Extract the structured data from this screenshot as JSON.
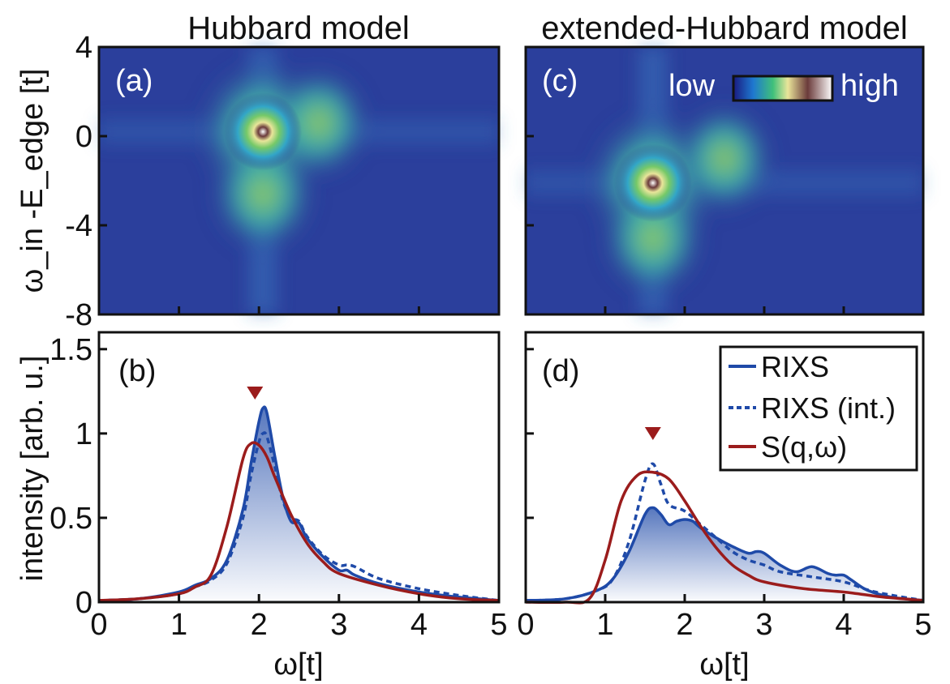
{
  "chart_data": [
    {
      "id": "a",
      "type": "heatmap",
      "panel_label": "(a)",
      "title": "Hubbard model",
      "xlim": [
        0,
        5
      ],
      "ylim": [
        -8,
        4
      ],
      "ylabel": "ω_in -E_edge [t]",
      "yticks": [
        "4",
        "0",
        "-4",
        "-8"
      ],
      "ytick_values": [
        4,
        0,
        -4,
        -8
      ],
      "peaks": [
        {
          "x": 2.05,
          "y": 0.2,
          "intensity": 1.0
        },
        {
          "x": 2.05,
          "y": -2.6,
          "intensity": 0.55
        },
        {
          "x": 2.75,
          "y": 0.6,
          "intensity": 0.45
        }
      ]
    },
    {
      "id": "c",
      "type": "heatmap",
      "panel_label": "(c)",
      "title": "extended-Hubbard model",
      "xlim": [
        0,
        5
      ],
      "ylim": [
        -8,
        4
      ],
      "colorbar": {
        "low": "low",
        "high": "high"
      },
      "peaks": [
        {
          "x": 1.6,
          "y": -2.1,
          "intensity": 1.0
        },
        {
          "x": 1.6,
          "y": -4.6,
          "intensity": 0.5
        },
        {
          "x": 2.5,
          "y": -1.0,
          "intensity": 0.4
        }
      ]
    },
    {
      "id": "b",
      "type": "line",
      "panel_label": "(b)",
      "xlabel": "ω[t]",
      "ylabel": "intensity [arb. u.]",
      "xlim": [
        0,
        5
      ],
      "ylim": [
        0,
        1.6
      ],
      "xticks": [
        "0",
        "1",
        "2",
        "3",
        "4",
        "5"
      ],
      "yticks": [
        "0",
        "0.5",
        "1",
        "1.5"
      ],
      "ytick_values": [
        0,
        0.5,
        1,
        1.5
      ],
      "marker": {
        "x": 1.95,
        "y": 1.23
      },
      "series": [
        {
          "name": "RIXS",
          "style": "solid",
          "color": "#1f4aa8",
          "x": [
            0,
            0.5,
            1.0,
            1.2,
            1.4,
            1.6,
            1.8,
            1.9,
            2.0,
            2.05,
            2.1,
            2.2,
            2.3,
            2.4,
            2.5,
            2.6,
            2.8,
            3.0,
            3.1,
            3.2,
            3.5,
            4.0,
            4.5,
            5.0
          ],
          "y": [
            0.01,
            0.02,
            0.06,
            0.1,
            0.14,
            0.25,
            0.55,
            0.82,
            1.07,
            1.15,
            1.12,
            0.86,
            0.62,
            0.48,
            0.47,
            0.38,
            0.27,
            0.19,
            0.19,
            0.16,
            0.11,
            0.06,
            0.03,
            0.01
          ]
        },
        {
          "name": "RIXS (int.)",
          "style": "dashed",
          "color": "#1f4aa8",
          "x": [
            0,
            0.5,
            1.0,
            1.2,
            1.4,
            1.6,
            1.8,
            1.9,
            2.0,
            2.05,
            2.1,
            2.2,
            2.3,
            2.4,
            2.5,
            2.6,
            2.8,
            3.0,
            3.1,
            3.2,
            3.5,
            4.0,
            4.5,
            5.0
          ],
          "y": [
            0.01,
            0.02,
            0.05,
            0.09,
            0.13,
            0.23,
            0.5,
            0.75,
            0.95,
            1.0,
            0.98,
            0.8,
            0.6,
            0.5,
            0.48,
            0.39,
            0.28,
            0.22,
            0.22,
            0.21,
            0.14,
            0.08,
            0.04,
            0.01
          ]
        },
        {
          "name": "S(q,ω)",
          "style": "solid",
          "color": "#9b1c1c",
          "x": [
            0,
            0.5,
            1.0,
            1.2,
            1.4,
            1.6,
            1.8,
            1.9,
            2.0,
            2.1,
            2.2,
            2.4,
            2.6,
            2.8,
            3.0,
            3.5,
            4.0,
            4.5,
            5.0
          ],
          "y": [
            0.01,
            0.02,
            0.05,
            0.09,
            0.16,
            0.45,
            0.85,
            0.94,
            0.93,
            0.86,
            0.74,
            0.52,
            0.35,
            0.24,
            0.17,
            0.1,
            0.05,
            0.02,
            0.01
          ]
        }
      ]
    },
    {
      "id": "d",
      "type": "line",
      "panel_label": "(d)",
      "xlabel": "ω[t]",
      "xlim": [
        0,
        5
      ],
      "ylim": [
        0,
        1.6
      ],
      "xticks": [
        "0",
        "1",
        "2",
        "3",
        "4",
        "5"
      ],
      "marker": {
        "x": 1.6,
        "y": 0.99
      },
      "legend": [
        "RIXS",
        "RIXS (int.)",
        "S(q,ω)"
      ],
      "series": [
        {
          "name": "RIXS",
          "style": "solid",
          "color": "#1f4aa8",
          "x": [
            0,
            0.5,
            0.9,
            1.1,
            1.3,
            1.5,
            1.6,
            1.7,
            1.8,
            1.9,
            2.0,
            2.1,
            2.2,
            2.4,
            2.6,
            2.8,
            2.9,
            3.0,
            3.2,
            3.4,
            3.6,
            3.8,
            3.9,
            4.0,
            4.1,
            4.3,
            4.6,
            5.0
          ],
          "y": [
            0.01,
            0.02,
            0.07,
            0.14,
            0.3,
            0.52,
            0.56,
            0.52,
            0.46,
            0.48,
            0.49,
            0.48,
            0.44,
            0.38,
            0.33,
            0.29,
            0.3,
            0.29,
            0.22,
            0.18,
            0.21,
            0.17,
            0.16,
            0.16,
            0.13,
            0.07,
            0.03,
            0.01
          ]
        },
        {
          "name": "RIXS (int.)",
          "style": "dashed",
          "color": "#1f4aa8",
          "x": [
            0,
            0.5,
            0.9,
            1.1,
            1.3,
            1.5,
            1.6,
            1.7,
            1.8,
            2.0,
            2.2,
            2.4,
            2.6,
            2.8,
            3.0,
            3.2,
            3.6,
            4.0,
            4.4,
            5.0
          ],
          "y": [
            0.01,
            0.02,
            0.07,
            0.14,
            0.36,
            0.72,
            0.82,
            0.7,
            0.58,
            0.54,
            0.46,
            0.38,
            0.3,
            0.25,
            0.22,
            0.18,
            0.15,
            0.12,
            0.06,
            0.01
          ]
        },
        {
          "name": "S(q,ω)",
          "style": "solid",
          "color": "#9b1c1c",
          "x": [
            0,
            0.5,
            0.8,
            1.0,
            1.2,
            1.4,
            1.6,
            1.8,
            2.0,
            2.2,
            2.4,
            2.6,
            2.8,
            3.0,
            3.5,
            4.0,
            4.5,
            5.0
          ],
          "y": [
            0.0,
            0.0,
            0.02,
            0.25,
            0.6,
            0.75,
            0.77,
            0.73,
            0.6,
            0.45,
            0.32,
            0.22,
            0.16,
            0.12,
            0.08,
            0.06,
            0.03,
            0.01
          ]
        }
      ]
    }
  ]
}
